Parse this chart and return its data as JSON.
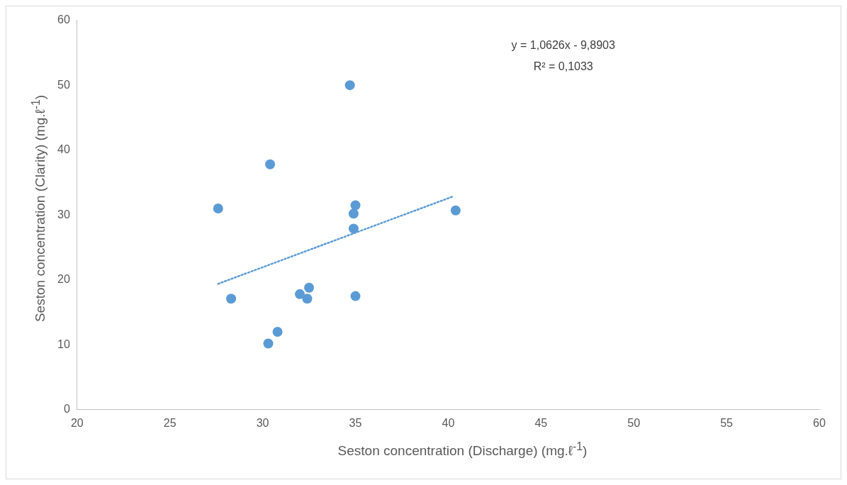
{
  "chart_data": {
    "type": "scatter",
    "xlabel": "Seston concentration (Discharge) (mg.ℓ$^{-1}$)",
    "ylabel": "Seston concentration (Clarity) (mg.ℓ$^{-1}$)",
    "xlim": [
      20,
      60
    ],
    "xticks": [
      20,
      25,
      30,
      35,
      40,
      45,
      50,
      55,
      60
    ],
    "ylim": [
      0,
      60
    ],
    "yticks": [
      0,
      10,
      20,
      30,
      40,
      50,
      60
    ],
    "grid": false,
    "legend": false,
    "marker": "circle",
    "annotations": [
      "y = 1,0626x - 9,8903",
      "R² = 0,1033"
    ],
    "series": [
      {
        "type": "scatter",
        "color": "#5b9bd5",
        "x": [
          27.6,
          28.3,
          30.4,
          30.3,
          30.8,
          32.0,
          32.4,
          32.5,
          34.7,
          35.0,
          34.9,
          34.9,
          35.0,
          40.4
        ],
        "values": [
          31,
          17.1,
          37.8,
          10.2,
          12.0,
          17.8,
          17.1,
          18.8,
          50,
          31.5,
          30.2,
          27.9,
          17.5,
          30.7
        ]
      },
      {
        "type": "line",
        "color": "#5b9bd5",
        "line_style": "dotted",
        "marker": "none",
        "x": [
          27.6,
          40.3
        ],
        "values": [
          19.4,
          32.9
        ]
      }
    ]
  }
}
